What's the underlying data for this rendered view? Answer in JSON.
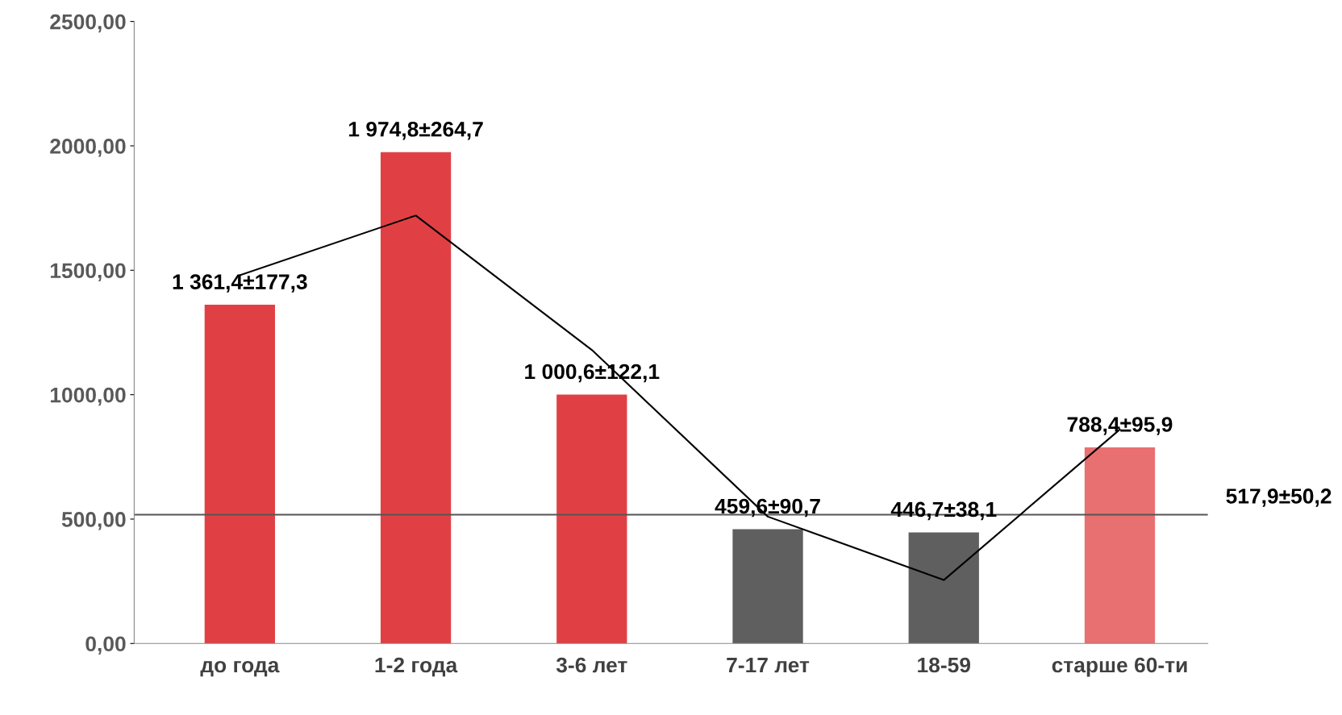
{
  "chart_data": {
    "type": "bar",
    "categories": [
      "до года",
      "1-2 года",
      "3-6 лет",
      "7-17 лет",
      "18-59",
      "старше 60-ти"
    ],
    "values": [
      1361.4,
      1974.8,
      1000.6,
      459.6,
      446.7,
      788.4
    ],
    "colors": [
      "#e04044",
      "#e04044",
      "#e04044",
      "#5f5f5f",
      "#5f5f5f",
      "#e87070"
    ],
    "value_labels": [
      "1 361,4±177,3",
      "1 974,8±264,7",
      "1 000,6±122,1",
      "459,6±90,7",
      "446,7±38,1",
      "788,4±95,9"
    ],
    "series": [
      {
        "type": "line",
        "color": "#000000",
        "values": [
          1480,
          1720,
          1180,
          510,
          255,
          860
        ]
      }
    ],
    "ref_lines": [
      {
        "axis": "y",
        "value": 517.9,
        "label": "517,9±50,2",
        "color": "#555555"
      }
    ],
    "ylim": [
      0,
      2500
    ],
    "yticks": [
      {
        "value": 0,
        "label": "0,00"
      },
      {
        "value": 500,
        "label": "500,00"
      },
      {
        "value": 1000,
        "label": "1000,00"
      },
      {
        "value": 1500,
        "label": "1500,00"
      },
      {
        "value": 2000,
        "label": "2000,00"
      },
      {
        "value": 2500,
        "label": "2500,00"
      }
    ],
    "grid": false
  }
}
